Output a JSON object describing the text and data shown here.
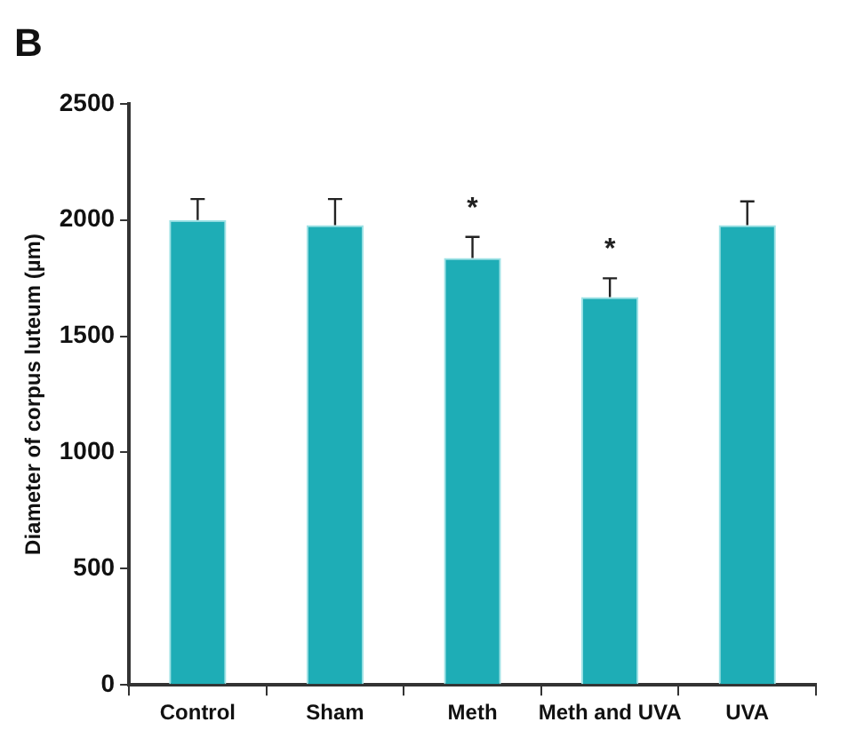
{
  "chart_data": {
    "type": "bar",
    "title": "B",
    "ylabel": "Diameter of corpus luteum (µm)",
    "categories": [
      "Control",
      "Sham",
      "Meth",
      "Meth and UVA",
      "UVA"
    ],
    "values": [
      2000,
      1978,
      1836,
      1668,
      1978
    ],
    "errors": [
      [
        2000,
        2090
      ],
      [
        1978,
        2090
      ],
      [
        1836,
        1927
      ],
      [
        1668,
        1749
      ],
      [
        1978,
        2080
      ]
    ],
    "color": "#1eadb6",
    "ylim": [
      0,
      2500
    ],
    "yticks": [
      0,
      500,
      1000,
      1500,
      2000,
      2500
    ],
    "grid": false,
    "legend": false,
    "annotations": [
      {
        "text": "*",
        "x": "Meth",
        "y": 1927
      },
      {
        "text": "*",
        "x": "Meth and UVA",
        "y": 1749
      }
    ]
  }
}
